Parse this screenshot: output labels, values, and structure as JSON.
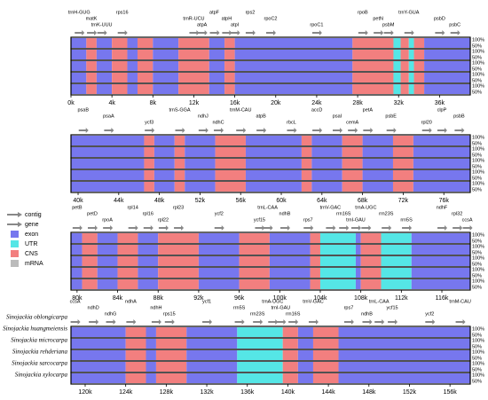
{
  "legend": [
    {
      "label": "contig",
      "color": "#888888"
    },
    {
      "label": "gene",
      "color": "#888888"
    },
    {
      "label": "exon",
      "color": "#7777ee"
    },
    {
      "label": "UTR",
      "color": "#55e6e6"
    },
    {
      "label": "CNS",
      "color": "#f27f7f"
    },
    {
      "label": "mRNA",
      "color": "#bbbbbb"
    }
  ],
  "track_labels": {
    "high": "100%",
    "low": "50%"
  },
  "species": [
    "Sinojackia oblongicarpa",
    "Sinojackia huangmeiensis",
    "Sinojackia microcarpa",
    "Sinojackia rehderiana",
    "Sinojackia sarcocarpa",
    "Sinojackia xylocarpa"
  ],
  "panels": [
    {
      "xlim": [
        0,
        39
      ],
      "xticks": [
        {
          "value": 0,
          "label": "0k"
        },
        {
          "value": 4,
          "label": "4k"
        },
        {
          "value": 8,
          "label": "8k"
        },
        {
          "value": 12,
          "label": "12k"
        },
        {
          "value": 16,
          "label": "16k"
        },
        {
          "value": 20,
          "label": "20k"
        },
        {
          "value": 24,
          "label": "24k"
        },
        {
          "value": 28,
          "label": "28k"
        },
        {
          "value": 32,
          "label": "32k"
        },
        {
          "value": 36,
          "label": "36k"
        }
      ],
      "genes": [
        {
          "label": "trnH-GUG",
          "pos": 0.8
        },
        {
          "label": "matK",
          "pos": 2
        },
        {
          "label": "trnK-UUU",
          "pos": 3
        },
        {
          "label": "rps16",
          "pos": 5
        },
        {
          "label": "trnR-UCU",
          "pos": 12
        },
        {
          "label": "atpA",
          "pos": 12.8
        },
        {
          "label": "atpF",
          "pos": 14
        },
        {
          "label": "atpH",
          "pos": 15.2
        },
        {
          "label": "atpI",
          "pos": 16
        },
        {
          "label": "rps2",
          "pos": 17.5
        },
        {
          "label": "rpoC2",
          "pos": 19.5
        },
        {
          "label": "rpoC1",
          "pos": 24
        },
        {
          "label": "rpoB",
          "pos": 28.5
        },
        {
          "label": "petN",
          "pos": 30
        },
        {
          "label": "psbM",
          "pos": 31
        },
        {
          "label": "trnY-GUA",
          "pos": 33
        },
        {
          "label": "psbD",
          "pos": 36
        },
        {
          "label": "psbC",
          "pos": 37.5
        }
      ],
      "segments": [
        {
          "kind": "exon",
          "start": 0,
          "end": 1.5
        },
        {
          "kind": "CNS",
          "start": 1.5,
          "end": 2.5
        },
        {
          "kind": "exon",
          "start": 2.5,
          "end": 4
        },
        {
          "kind": "CNS",
          "start": 4,
          "end": 5.5
        },
        {
          "kind": "exon",
          "start": 5.5,
          "end": 6.5
        },
        {
          "kind": "CNS",
          "start": 6.5,
          "end": 8
        },
        {
          "kind": "exon",
          "start": 8,
          "end": 10.5
        },
        {
          "kind": "CNS",
          "start": 10.5,
          "end": 13.5
        },
        {
          "kind": "exon",
          "start": 13.5,
          "end": 15
        },
        {
          "kind": "CNS",
          "start": 15,
          "end": 16
        },
        {
          "kind": "exon",
          "start": 16,
          "end": 27.5
        },
        {
          "kind": "CNS",
          "start": 27.5,
          "end": 31.5
        },
        {
          "kind": "UTR",
          "start": 31.5,
          "end": 32.2
        },
        {
          "kind": "CNS",
          "start": 32.2,
          "end": 33
        },
        {
          "kind": "UTR",
          "start": 33,
          "end": 33.5
        },
        {
          "kind": "CNS",
          "start": 33.5,
          "end": 34.5
        },
        {
          "kind": "exon",
          "start": 34.5,
          "end": 39
        }
      ]
    },
    {
      "xlim": [
        39.3,
        78.6
      ],
      "xticks": [
        {
          "value": 40,
          "label": "40k"
        },
        {
          "value": 44,
          "label": "44k"
        },
        {
          "value": 48,
          "label": "48k"
        },
        {
          "value": 52,
          "label": "52k"
        },
        {
          "value": 56,
          "label": "56k"
        },
        {
          "value": 60,
          "label": "60k"
        },
        {
          "value": 64,
          "label": "64k"
        },
        {
          "value": 68,
          "label": "68k"
        },
        {
          "value": 72,
          "label": "72k"
        },
        {
          "value": 76,
          "label": "76k"
        }
      ],
      "genes": [
        {
          "label": "psaB",
          "pos": 40.5
        },
        {
          "label": "psaA",
          "pos": 43
        },
        {
          "label": "ycf3",
          "pos": 47
        },
        {
          "label": "trnS-GGA",
          "pos": 50
        },
        {
          "label": "ndhJ",
          "pos": 52.3
        },
        {
          "label": "ndhC",
          "pos": 53.8
        },
        {
          "label": "trnM-CAU",
          "pos": 56
        },
        {
          "label": "atpB",
          "pos": 58
        },
        {
          "label": "rbcL",
          "pos": 61
        },
        {
          "label": "accD",
          "pos": 63.5
        },
        {
          "label": "psaI",
          "pos": 65.5
        },
        {
          "label": "cemA",
          "pos": 67
        },
        {
          "label": "petA",
          "pos": 68.5
        },
        {
          "label": "psbE",
          "pos": 70.8
        },
        {
          "label": "rpl20",
          "pos": 74.3
        },
        {
          "label": "clpP",
          "pos": 75.8
        },
        {
          "label": "psbB",
          "pos": 77.5
        }
      ],
      "segments": [
        {
          "kind": "exon",
          "start": 39.3,
          "end": 46.5
        },
        {
          "kind": "CNS",
          "start": 46.5,
          "end": 47.5
        },
        {
          "kind": "exon",
          "start": 47.5,
          "end": 49.5
        },
        {
          "kind": "CNS",
          "start": 49.5,
          "end": 50.5
        },
        {
          "kind": "exon",
          "start": 50.5,
          "end": 53.5
        },
        {
          "kind": "CNS",
          "start": 53.5,
          "end": 56.5
        },
        {
          "kind": "exon",
          "start": 56.5,
          "end": 62
        },
        {
          "kind": "CNS",
          "start": 62,
          "end": 63
        },
        {
          "kind": "exon",
          "start": 63,
          "end": 66
        },
        {
          "kind": "CNS",
          "start": 66,
          "end": 68
        },
        {
          "kind": "exon",
          "start": 68,
          "end": 71
        },
        {
          "kind": "CNS",
          "start": 71,
          "end": 73
        },
        {
          "kind": "exon",
          "start": 73,
          "end": 78.6
        }
      ]
    },
    {
      "xlim": [
        79.4,
        118.8
      ],
      "xticks": [
        {
          "value": 80,
          "label": "80k"
        },
        {
          "value": 84,
          "label": "84k"
        },
        {
          "value": 88,
          "label": "88k"
        },
        {
          "value": 92,
          "label": "92k"
        },
        {
          "value": 96,
          "label": "96k"
        },
        {
          "value": 100,
          "label": "100k"
        },
        {
          "value": 104,
          "label": "104k"
        },
        {
          "value": 108,
          "label": "108k"
        },
        {
          "value": 112,
          "label": "112k"
        },
        {
          "value": 116,
          "label": "116k"
        }
      ],
      "genes": [
        {
          "label": "petB",
          "pos": 80
        },
        {
          "label": "petD",
          "pos": 81.5
        },
        {
          "label": "rpoA",
          "pos": 83
        },
        {
          "label": "rpl14",
          "pos": 85.5
        },
        {
          "label": "rpl16",
          "pos": 87
        },
        {
          "label": "rpl22",
          "pos": 88.5
        },
        {
          "label": "rpl23",
          "pos": 90
        },
        {
          "label": "ycf2",
          "pos": 94
        },
        {
          "label": "ycf15",
          "pos": 98
        },
        {
          "label": "trnL-CAA",
          "pos": 98.8
        },
        {
          "label": "ndhB",
          "pos": 100.5
        },
        {
          "label": "rps7",
          "pos": 102.8
        },
        {
          "label": "trnV-GAC",
          "pos": 105
        },
        {
          "label": "rrn16S",
          "pos": 106.3
        },
        {
          "label": "trnI-GAU",
          "pos": 107.5
        },
        {
          "label": "trnA-UGC",
          "pos": 108.5
        },
        {
          "label": "rrn23S",
          "pos": 110.5
        },
        {
          "label": "rrn5S",
          "pos": 112.5
        },
        {
          "label": "ndhF",
          "pos": 116
        },
        {
          "label": "rpl32",
          "pos": 117.5
        },
        {
          "label": "ccsA",
          "pos": 118.5
        }
      ],
      "segments": [
        {
          "kind": "exon",
          "start": 79.4,
          "end": 80.5
        },
        {
          "kind": "CNS",
          "start": 80.5,
          "end": 82
        },
        {
          "kind": "exon",
          "start": 82,
          "end": 84
        },
        {
          "kind": "CNS",
          "start": 84,
          "end": 86
        },
        {
          "kind": "exon",
          "start": 86,
          "end": 88
        },
        {
          "kind": "CNS",
          "start": 88,
          "end": 92
        },
        {
          "kind": "exon",
          "start": 92,
          "end": 96
        },
        {
          "kind": "CNS",
          "start": 96,
          "end": 99
        },
        {
          "kind": "exon",
          "start": 99,
          "end": 103
        },
        {
          "kind": "CNS",
          "start": 103,
          "end": 104
        },
        {
          "kind": "UTR",
          "start": 104,
          "end": 107.5
        },
        {
          "kind": "exon",
          "start": 107.5,
          "end": 108
        },
        {
          "kind": "CNS",
          "start": 108,
          "end": 110
        },
        {
          "kind": "UTR",
          "start": 110,
          "end": 113
        },
        {
          "kind": "exon",
          "start": 113,
          "end": 118.8
        }
      ]
    },
    {
      "xlim": [
        118.6,
        158
      ],
      "xticks": [
        {
          "value": 120,
          "label": "120k"
        },
        {
          "value": 124,
          "label": "124k"
        },
        {
          "value": 128,
          "label": "128k"
        },
        {
          "value": 132,
          "label": "132k"
        },
        {
          "value": 136,
          "label": "136k"
        },
        {
          "value": 140,
          "label": "140k"
        },
        {
          "value": 144,
          "label": "144k"
        },
        {
          "value": 148,
          "label": "148k"
        },
        {
          "value": 152,
          "label": "152k"
        },
        {
          "value": 156,
          "label": "156k"
        }
      ],
      "genes": [
        {
          "label": "ccsA",
          "pos": 119
        },
        {
          "label": "ndhD",
          "pos": 120.8
        },
        {
          "label": "ndhG",
          "pos": 122.5
        },
        {
          "label": "ndhA",
          "pos": 124.5
        },
        {
          "label": "ndhH",
          "pos": 127
        },
        {
          "label": "rps15",
          "pos": 128.3
        },
        {
          "label": "ycf1",
          "pos": 132
        },
        {
          "label": "rrn5S",
          "pos": 135.2
        },
        {
          "label": "rrn23S",
          "pos": 137
        },
        {
          "label": "trnA-UGC",
          "pos": 138.5
        },
        {
          "label": "trnI-GAU",
          "pos": 139.3
        },
        {
          "label": "rrn16S",
          "pos": 140.5
        },
        {
          "label": "trnV-GAC",
          "pos": 142.5
        },
        {
          "label": "rps7",
          "pos": 146
        },
        {
          "label": "ndhB",
          "pos": 147.8
        },
        {
          "label": "trnL-CAA",
          "pos": 149
        },
        {
          "label": "ycf15",
          "pos": 150.3
        },
        {
          "label": "ycf2",
          "pos": 154
        },
        {
          "label": "trnM-CAU",
          "pos": 157
        }
      ],
      "segments": [
        {
          "kind": "exon",
          "start": 118.6,
          "end": 124
        },
        {
          "kind": "CNS",
          "start": 124,
          "end": 126
        },
        {
          "kind": "exon",
          "start": 126,
          "end": 127
        },
        {
          "kind": "CNS",
          "start": 127,
          "end": 130
        },
        {
          "kind": "exon",
          "start": 130,
          "end": 135
        },
        {
          "kind": "UTR",
          "start": 135,
          "end": 139.5
        },
        {
          "kind": "CNS",
          "start": 139.5,
          "end": 141
        },
        {
          "kind": "exon",
          "start": 141,
          "end": 142.5
        },
        {
          "kind": "CNS",
          "start": 142.5,
          "end": 145
        },
        {
          "kind": "exon",
          "start": 145,
          "end": 158
        }
      ]
    }
  ]
}
